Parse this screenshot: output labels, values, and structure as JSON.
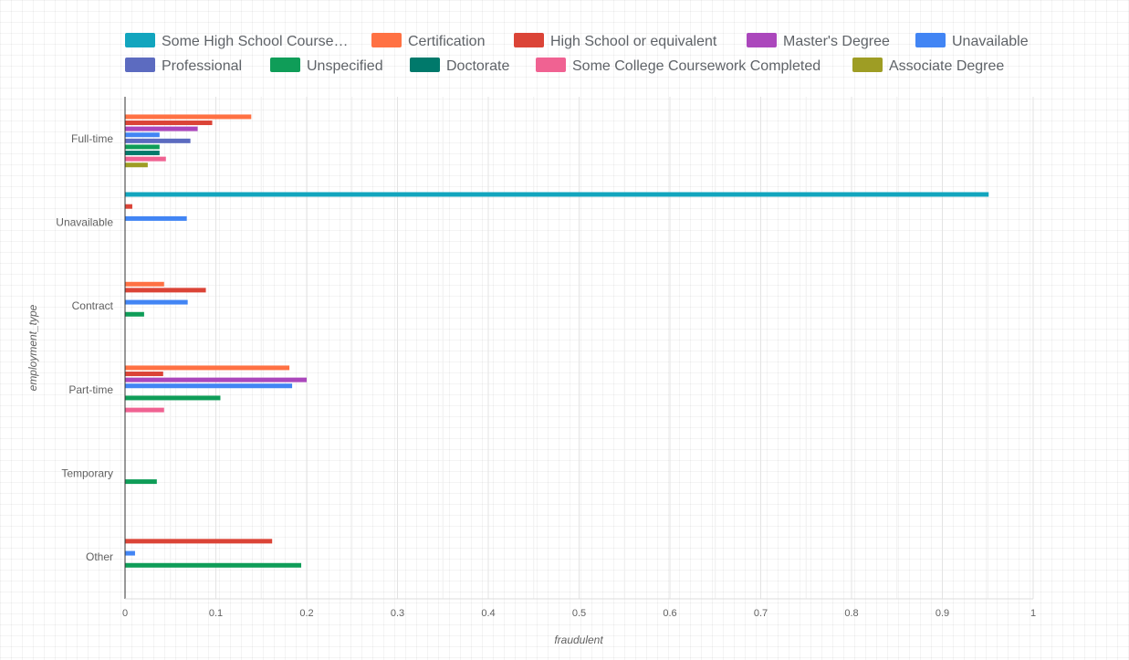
{
  "chart_data": {
    "type": "bar",
    "orientation": "horizontal",
    "xlabel": "fraudulent",
    "ylabel": "employment_type",
    "xlim": [
      0,
      1
    ],
    "x_ticks": [
      "0",
      "0.1",
      "0.2",
      "0.3",
      "0.4",
      "0.5",
      "0.6",
      "0.7",
      "0.8",
      "0.9",
      "1"
    ],
    "grid": true,
    "legend_position": "top",
    "categories": [
      "Full-time",
      "Unavailable",
      "Contract",
      "Part-time",
      "Temporary",
      "Other"
    ],
    "series": [
      {
        "name": "Some High School Course…",
        "color": "#12A5BE",
        "values": [
          0,
          0.951,
          0,
          0,
          0,
          0
        ]
      },
      {
        "name": "Certification",
        "color": "#FF7143",
        "values": [
          0.139,
          0,
          0.043,
          0.181,
          0,
          0
        ]
      },
      {
        "name": "High School or equivalent",
        "color": "#DB4437",
        "values": [
          0.096,
          0.008,
          0.089,
          0.042,
          0,
          0.162
        ]
      },
      {
        "name": "Master's Degree",
        "color": "#AB47BC",
        "values": [
          0.08,
          0,
          0,
          0.2,
          0,
          0
        ]
      },
      {
        "name": "Unavailable",
        "color": "#4285F4",
        "values": [
          0.038,
          0.068,
          0.069,
          0.184,
          0,
          0.011
        ]
      },
      {
        "name": "Professional",
        "color": "#5C6BC0",
        "values": [
          0.072,
          0,
          0,
          0,
          0,
          0
        ]
      },
      {
        "name": "Unspecified",
        "color": "#0F9D58",
        "values": [
          0.038,
          0,
          0.021,
          0.105,
          0.035,
          0.194
        ]
      },
      {
        "name": "Doctorate",
        "color": "#00796B",
        "values": [
          0.038,
          0,
          0,
          0,
          0,
          0
        ]
      },
      {
        "name": "Some College Coursework Completed",
        "color": "#F06292",
        "values": [
          0.045,
          0,
          0,
          0.043,
          0,
          0
        ]
      },
      {
        "name": "Associate Degree",
        "color": "#9E9D24",
        "values": [
          0.025,
          0,
          0,
          0,
          0,
          0
        ]
      }
    ]
  }
}
